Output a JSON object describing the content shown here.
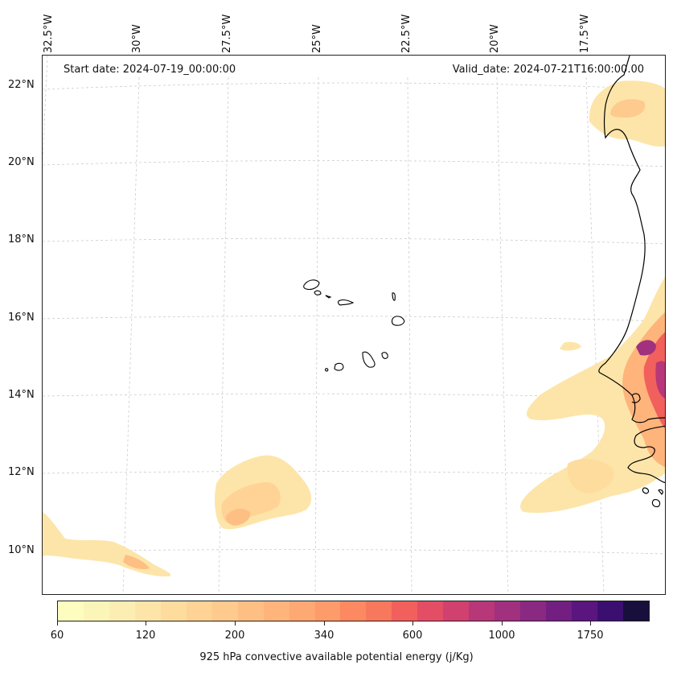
{
  "header": {
    "start_date": "Start date: 2024-07-19_00:00:00",
    "valid_date": "Valid_date: 2024-07-21T16:00:00.00"
  },
  "axes": {
    "lon_labels": [
      "32.5°W",
      "30°W",
      "27.5°W",
      "25°W",
      "22.5°W",
      "20°W",
      "17.5°W"
    ],
    "lat_labels": [
      "22°N",
      "20°N",
      "18°N",
      "16°N",
      "14°N",
      "12°N",
      "10°N"
    ]
  },
  "colorbar": {
    "label": "925 hPa convective available potential energy (j/Kg)",
    "tick_labels": [
      "60",
      "120",
      "200",
      "340",
      "600",
      "1000",
      "1750"
    ],
    "colors": [
      "#fcfdbf",
      "#fcf5b8",
      "#fcedb2",
      "#fde5a9",
      "#fddc9e",
      "#fed395",
      "#feca8d",
      "#febf84",
      "#feb47b",
      "#fea873",
      "#fe9b6b",
      "#fc8961",
      "#f7785c",
      "#f1605d",
      "#e34e65",
      "#d0416f",
      "#b73779",
      "#a1307e",
      "#8a2981",
      "#721f81",
      "#5a167e",
      "#3b0f70",
      "#180f3d"
    ]
  },
  "map": {
    "coastline_color": "#000000",
    "gridline_color": "#cccccc",
    "field": "925 hPa CAPE"
  }
}
